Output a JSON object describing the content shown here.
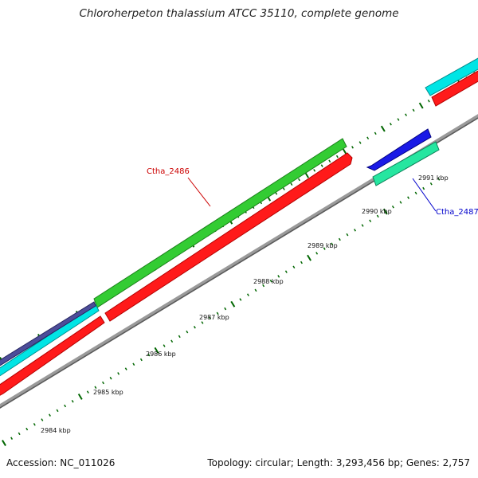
{
  "title": "Chloroherpeton thalassium ATCC 35110, complete genome",
  "footer": {
    "accession": "Accession: NC_011026",
    "summary": "Topology: circular; Length: 3,293,456 bp; Genes: 2,757"
  },
  "ruler": {
    "unit": "kbp",
    "labels": [
      "2984 kbp",
      "2985 kbp",
      "2986 kbp",
      "2987 kbp",
      "2988 kbp",
      "2989 kbp",
      "2990 kbp",
      "2991 kbp"
    ]
  },
  "genes": [
    {
      "id": "Ctha_2486",
      "color": "#cc0000",
      "label_color": "#cc0000"
    },
    {
      "id": "Ctha_2487",
      "color": "#0000cc",
      "label_color": "#0000cc"
    }
  ],
  "track_colors": {
    "backbone": "#7f7f7f",
    "cds_red": "#ff1a1a",
    "cds_green": "#33cc33",
    "cds_cyan": "#00e5e5",
    "cds_blue": "#1a1ae6",
    "cds_slate": "#4d4d99",
    "cds_teal": "#26e6a0",
    "ticks": "#006600"
  }
}
